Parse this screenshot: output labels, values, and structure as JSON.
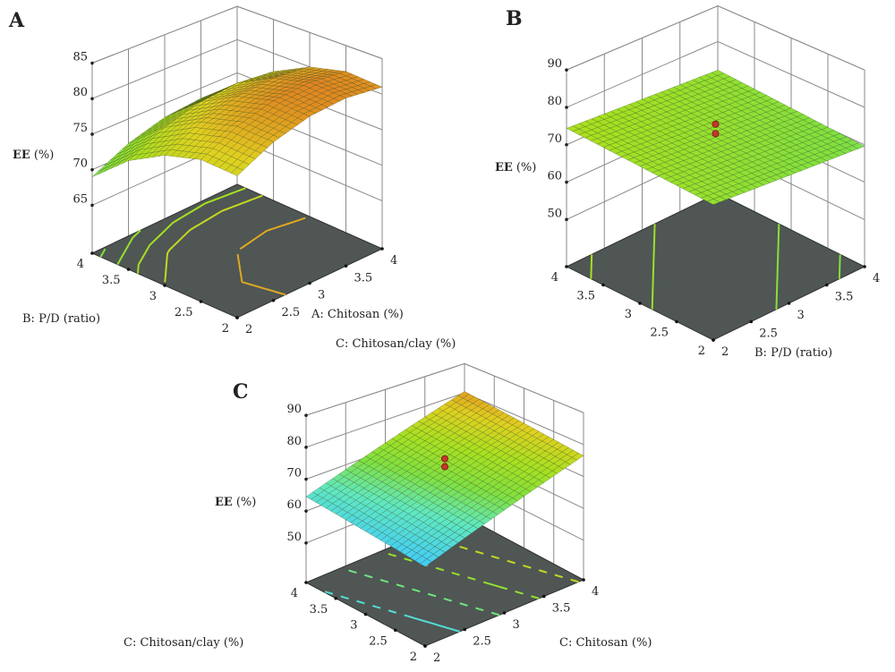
{
  "chart_data": [
    {
      "type": "surface",
      "panel": "A",
      "zlabel": "EE (%)",
      "zlabel_bold": "EE",
      "zlabel_unit": "(%)",
      "zticks": [
        65,
        70,
        75,
        80,
        85
      ],
      "left_axis": {
        "label": "B: P/D (ratio)",
        "ticks": [
          2,
          2.5,
          3,
          3.5,
          4
        ],
        "tick_labels": [
          "2",
          "2.5",
          "3",
          "3.5",
          "4"
        ]
      },
      "right_axis": {
        "label": "A: Chitosan (%)",
        "ticks": [
          2,
          2.5,
          3,
          3.5,
          4
        ],
        "tick_labels": [
          "2",
          "2.5",
          "3",
          "3.5",
          "4"
        ]
      },
      "surface_z": [
        [
          77.0,
          79.5,
          81.0,
          81.5,
          81.0
        ],
        [
          77.3,
          79.8,
          81.3,
          81.8,
          81.3
        ],
        [
          76.0,
          78.5,
          80.0,
          80.5,
          80.0
        ],
        [
          73.3,
          75.8,
          77.3,
          77.8,
          77.3
        ],
        [
          69.0,
          71.5,
          73.0,
          73.5,
          73.0
        ]
      ],
      "contour_levels": [
        70,
        72,
        74,
        76,
        80
      ],
      "design_points": []
    },
    {
      "type": "surface",
      "panel": "B",
      "zlabel": "EE (%)",
      "zlabel_bold": "EE",
      "zlabel_unit": "(%)",
      "zticks": [
        50,
        60,
        70,
        80,
        90
      ],
      "left_axis": {
        "label": "C: Chitosan/clay (%)",
        "ticks": [
          2,
          2.5,
          3,
          3.5,
          4
        ],
        "tick_labels": [
          "2",
          "2.5",
          "3",
          "3.5",
          "4"
        ]
      },
      "right_axis": {
        "label": "B: P/D (ratio)",
        "ticks": [
          2,
          2.5,
          3,
          3.5,
          4
        ],
        "tick_labels": [
          "2",
          "2.5",
          "3",
          "3.5",
          "4"
        ]
      },
      "surface_z": [
        [
          72.0,
          71.4,
          70.8,
          70.2,
          69.6
        ],
        [
          72.6,
          72.0,
          71.4,
          70.8,
          70.2
        ],
        [
          73.2,
          72.6,
          72.0,
          71.4,
          70.8
        ],
        [
          73.8,
          73.2,
          72.6,
          72.0,
          71.4
        ],
        [
          74.4,
          73.8,
          73.2,
          72.6,
          72.0
        ]
      ],
      "contour_levels": [
        70,
        71,
        72,
        73,
        74
      ],
      "design_points": [
        [
          3,
          3,
          75.5
        ],
        [
          3,
          3,
          73
        ]
      ]
    },
    {
      "type": "surface",
      "panel": "C",
      "zlabel": "EE (%)",
      "zlabel_bold": "EE",
      "zlabel_unit": "(%)",
      "zticks": [
        50,
        60,
        70,
        80,
        90
      ],
      "left_axis": {
        "label": "C: Chitosan/clay (%)",
        "ticks": [
          2,
          2.5,
          3,
          3.5,
          4
        ],
        "tick_labels": [
          "2",
          "2.5",
          "3",
          "3.5",
          "4"
        ]
      },
      "right_axis": {
        "label": "C: Chitosan (%)",
        "ticks": [
          2,
          2.5,
          3,
          3.5,
          4
        ],
        "tick_labels": [
          "2",
          "2.5",
          "3",
          "3.5",
          "4"
        ]
      },
      "surface_z": [
        [
          60.5,
          64.5,
          68.5,
          72.5,
          76.5
        ],
        [
          61.5,
          65.5,
          69.5,
          73.5,
          77.5
        ],
        [
          62.5,
          66.5,
          70.5,
          74.5,
          78.5
        ],
        [
          63.5,
          67.5,
          71.5,
          75.5,
          79.5
        ],
        [
          64.5,
          68.5,
          72.5,
          76.5,
          80.5
        ]
      ],
      "contour_levels": [
        64,
        68,
        72,
        76,
        80
      ],
      "design_points": [
        [
          3,
          3,
          76
        ],
        [
          3,
          3,
          73.5
        ]
      ]
    }
  ],
  "colors": {
    "floor": "#4f5654",
    "grid": "#8a8a8a",
    "design_point": "#c0392b",
    "colormap": [
      "#40c8ff",
      "#60e8c0",
      "#80e040",
      "#a8e020",
      "#e0d020",
      "#e08020"
    ]
  }
}
